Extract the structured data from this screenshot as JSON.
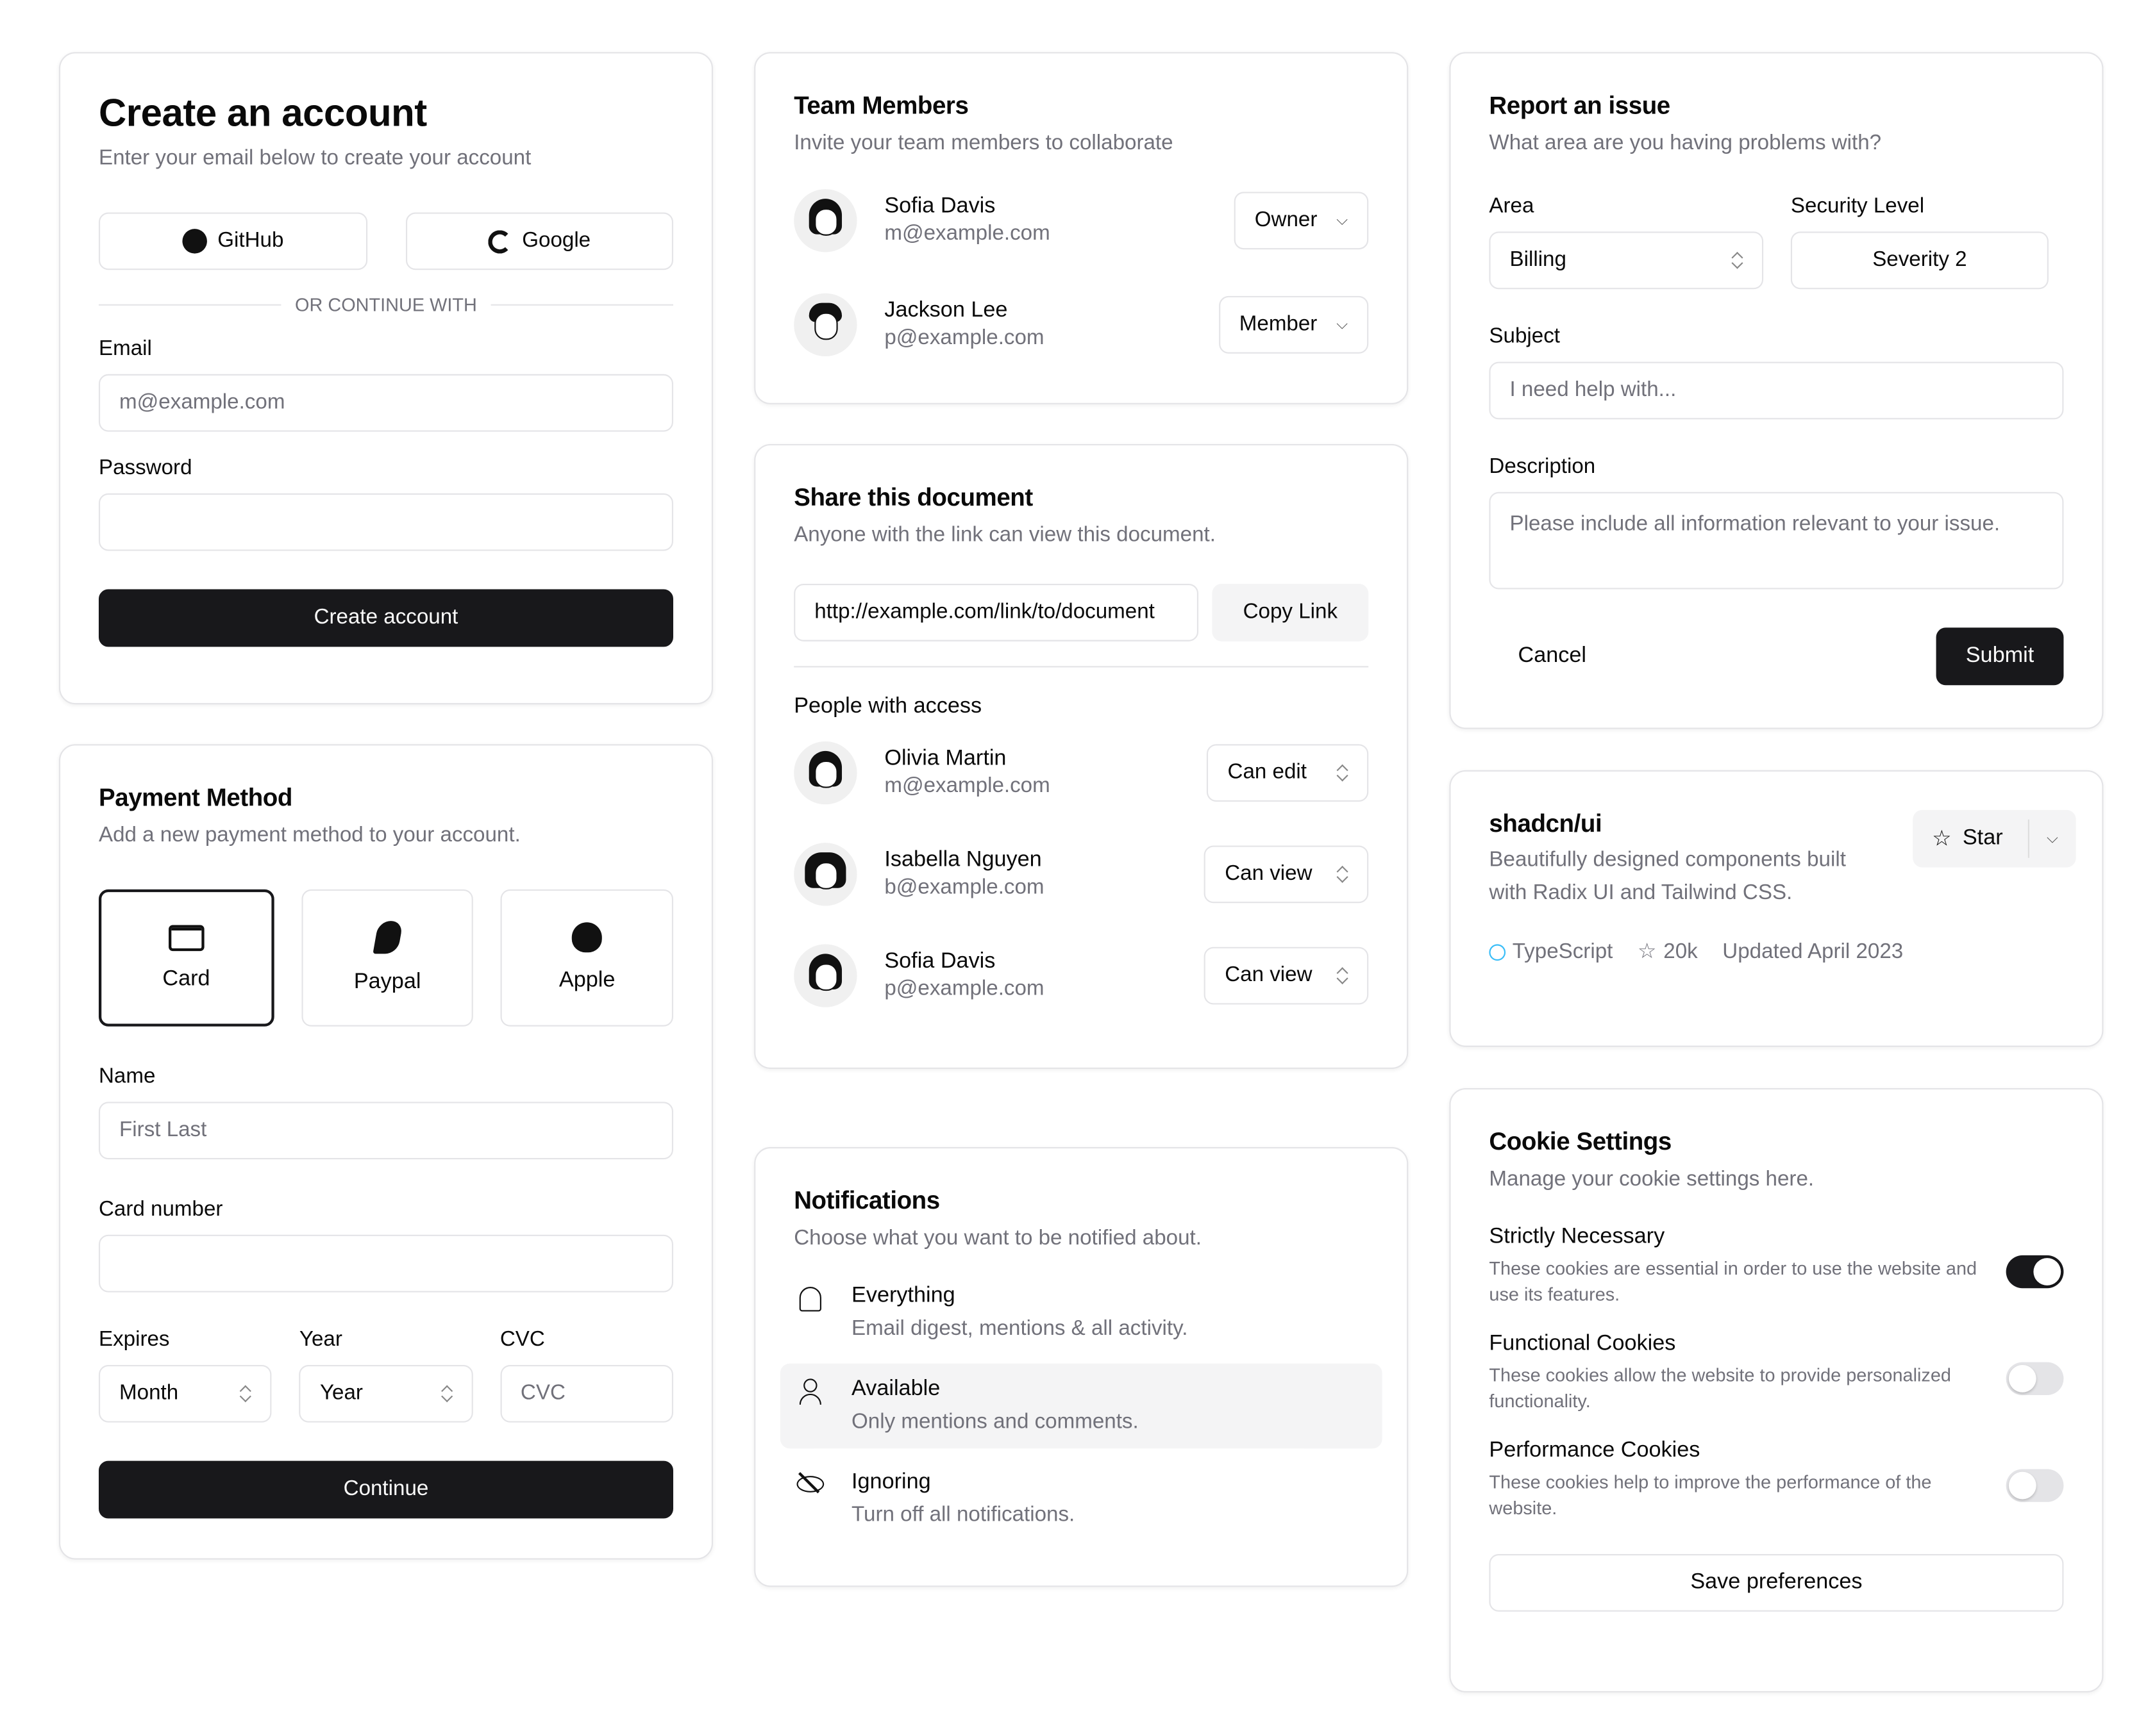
{
  "create_account": {
    "title": "Create an account",
    "subtitle": "Enter your email below to create your account",
    "github": "GitHub",
    "google": "Google",
    "divider": "OR CONTINUE WITH",
    "email_label": "Email",
    "email_placeholder": "m@example.com",
    "password_label": "Password",
    "submit": "Create account"
  },
  "payment": {
    "title": "Payment Method",
    "subtitle": "Add a new payment method to your account.",
    "methods": [
      {
        "label": "Card",
        "icon": "credit-card-icon",
        "selected": true
      },
      {
        "label": "Paypal",
        "icon": "paypal-icon"
      },
      {
        "label": "Apple",
        "icon": "apple-icon"
      }
    ],
    "name_label": "Name",
    "name_placeholder": "First Last",
    "card_label": "Card number",
    "expires_label": "Expires",
    "expires_value": "Month",
    "year_label": "Year",
    "year_value": "Year",
    "cvc_label": "CVC",
    "cvc_placeholder": "CVC",
    "submit": "Continue"
  },
  "team": {
    "title": "Team Members",
    "subtitle": "Invite your team members to collaborate",
    "members": [
      {
        "name": "Sofia Davis",
        "email": "m@example.com",
        "role": "Owner"
      },
      {
        "name": "Jackson Lee",
        "email": "p@example.com",
        "role": "Member"
      }
    ]
  },
  "share": {
    "title": "Share this document",
    "subtitle": "Anyone with the link can view this document.",
    "link": "http://example.com/link/to/document",
    "copy": "Copy Link",
    "people_label": "People with access",
    "people": [
      {
        "name": "Olivia Martin",
        "email": "m@example.com",
        "access": "Can edit"
      },
      {
        "name": "Isabella Nguyen",
        "email": "b@example.com",
        "access": "Can view"
      },
      {
        "name": "Sofia Davis",
        "email": "p@example.com",
        "access": "Can view"
      }
    ]
  },
  "notifications": {
    "title": "Notifications",
    "subtitle": "Choose what you want to be notified about.",
    "items": [
      {
        "title": "Everything",
        "desc": "Email digest, mentions & all activity.",
        "icon": "bell-icon"
      },
      {
        "title": "Available",
        "desc": "Only mentions and comments.",
        "icon": "user-icon",
        "selected": true
      },
      {
        "title": "Ignoring",
        "desc": "Turn off all notifications.",
        "icon": "eye-off-icon"
      }
    ]
  },
  "report": {
    "title": "Report an issue",
    "subtitle": "What area are you having problems with?",
    "area_label": "Area",
    "area_value": "Billing",
    "security_label": "Security Level",
    "security_value": "Severity 2",
    "subject_label": "Subject",
    "subject_placeholder": "I need help with...",
    "description_label": "Description",
    "description_placeholder": "Please include all information relevant to your issue.",
    "cancel": "Cancel",
    "submit": "Submit"
  },
  "repo": {
    "title": "shadcn/ui",
    "description": "Beautifully designed components built with Radix UI and Tailwind CSS.",
    "star": "Star",
    "language": "TypeScript",
    "language_color": "#38bdf8",
    "stars": "20k",
    "updated": "Updated April 2023"
  },
  "cookies": {
    "title": "Cookie Settings",
    "subtitle": "Manage your cookie settings here.",
    "items": [
      {
        "title": "Strictly Necessary",
        "desc": "These cookies are essential in order to use the website and use its features.",
        "on": true
      },
      {
        "title": "Functional Cookies",
        "desc": "These cookies allow the website to provide personalized functionality.",
        "on": false
      },
      {
        "title": "Performance Cookies",
        "desc": "These cookies help to improve the performance of the website.",
        "on": false
      }
    ],
    "save": "Save preferences"
  }
}
